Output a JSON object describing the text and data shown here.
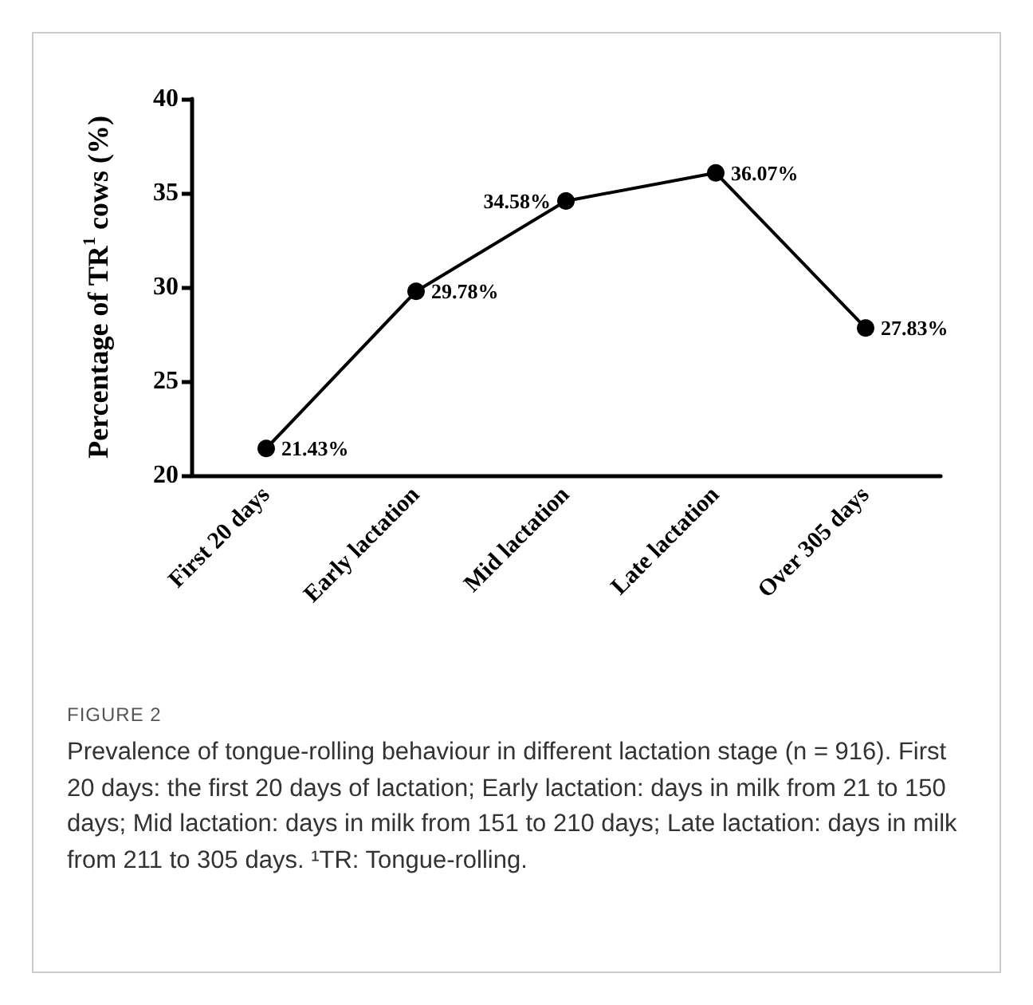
{
  "chart_data": {
    "type": "line",
    "ylabel": "Percentage of TR$^{1}$ cows (%)",
    "categories": [
      "First 20 days",
      "Early lactation",
      "Mid lactation",
      "Late lactation",
      "Over 305 days"
    ],
    "series": [
      {
        "color": "#000000",
        "values": [
          21.43,
          29.78,
          34.58,
          36.07,
          27.83
        ],
        "value_labels": [
          "21.43%",
          "29.78%",
          "34.58%",
          "36.07%",
          "27.83%"
        ]
      }
    ],
    "ylim": [
      20,
      40
    ],
    "yticks": [
      20,
      25,
      30,
      35,
      40
    ],
    "grid": false,
    "marker": "circle",
    "line_style": "solid",
    "annotations": [
      "FIGURE 2",
      "Prevalence of tongue-rolling behaviour in different lactation stage (n = 916). First 20 days: the first 20 days of lactation; Early lactation: days in milk from 21 to 150 days; Mid lactation: days in milk from 151 to 210 days; Late lactation: days in milk from 211 to 305 days. ¹TR: Tongue-rolling."
    ]
  }
}
